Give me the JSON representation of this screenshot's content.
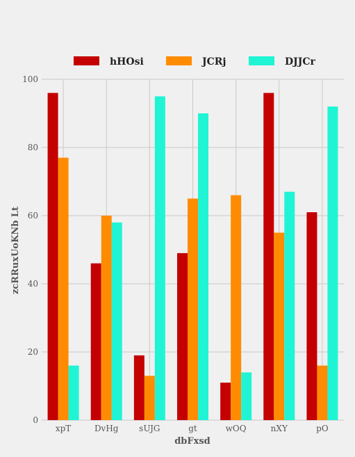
{
  "chart_data": {
    "type": "bar",
    "title": "",
    "xlabel": "dbFxsd",
    "ylabel": "zcRRuxUoKNb Lt",
    "categories": [
      "xpT",
      "DvHg",
      "sUJG",
      "gt",
      "wOQ",
      "nXY",
      "pO"
    ],
    "series": [
      {
        "name": "hHOsi",
        "color": "#c40000",
        "values": [
          96,
          46,
          19,
          49,
          11,
          96,
          61
        ]
      },
      {
        "name": "JCRj",
        "color": "#ff8c00",
        "values": [
          77,
          60,
          13,
          65,
          66,
          55,
          16
        ]
      },
      {
        "name": "DJJCr",
        "color": "#1ff5d4",
        "values": [
          16,
          58,
          95,
          90,
          14,
          67,
          92
        ]
      }
    ],
    "ylim": [
      0,
      100
    ],
    "yticks": [
      0,
      20,
      40,
      60,
      80,
      100
    ],
    "grid": true,
    "legend_position": "top"
  }
}
